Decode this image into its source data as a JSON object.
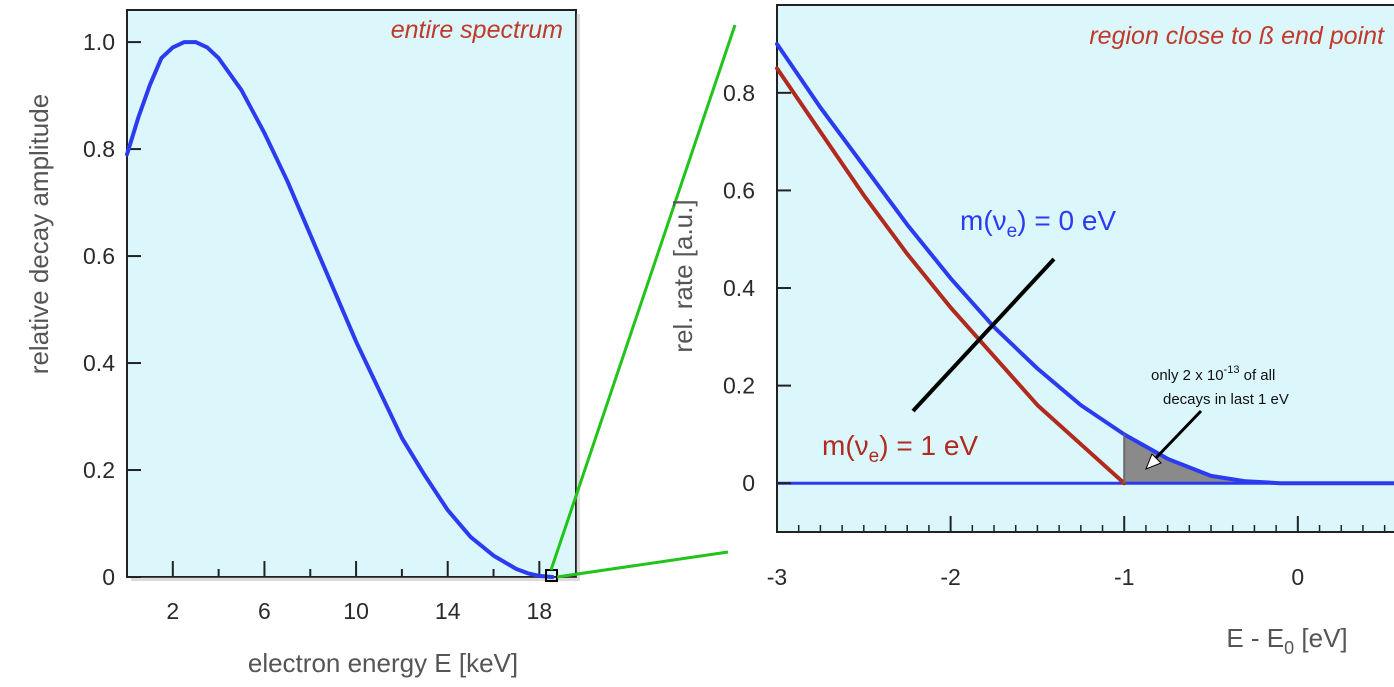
{
  "chart_data": [
    {
      "type": "line",
      "annotation": "entire spectrum",
      "xlabel": "electron energy E [keV]",
      "ylabel": "relative decay amplitude",
      "xlim": [
        0,
        19.6
      ],
      "ylim": [
        0,
        1.06
      ],
      "xticks": [
        2,
        6,
        10,
        14,
        18
      ],
      "yticks": [
        0,
        0.2,
        0.4,
        0.6,
        0.8,
        1.0
      ],
      "ytick_labels": [
        "0",
        "0.2",
        "0.4",
        "0.6",
        "0.8",
        "1.0"
      ],
      "series": [
        {
          "color": "#2b3bf0",
          "x": [
            0,
            0.5,
            1,
            1.5,
            2,
            2.5,
            3,
            3.5,
            4,
            5,
            6,
            7,
            8,
            9,
            10,
            11,
            12,
            13,
            14,
            15,
            16,
            17,
            17.5,
            18,
            18.57
          ],
          "y": [
            0.79,
            0.86,
            0.92,
            0.97,
            0.99,
            1.0,
            1.0,
            0.99,
            0.97,
            0.91,
            0.83,
            0.74,
            0.64,
            0.54,
            0.44,
            0.35,
            0.26,
            0.19,
            0.125,
            0.075,
            0.04,
            0.015,
            0.007,
            0.002,
            0
          ]
        }
      ],
      "zoom_box_x": 18.57
    },
    {
      "type": "line",
      "annotation": "region close to ß end point",
      "xlabel": "E - E0 [eV]",
      "ylabel": "rel. rate [a.u.]",
      "xlim": [
        -3,
        0.6
      ],
      "ylim": [
        -0.1,
        0.98
      ],
      "xticks": [
        -3,
        -2,
        -1,
        0
      ],
      "yticks": [
        0,
        0.2,
        0.4,
        0.6,
        0.8
      ],
      "ytick_labels": [
        "0",
        "0.2",
        "0.4",
        "0.6",
        "0.8"
      ],
      "series": [
        {
          "name": "m(νe) = 0 eV",
          "color": "#2b3bf0",
          "x": [
            -3,
            -2.75,
            -2.5,
            -2.25,
            -2,
            -1.75,
            -1.5,
            -1.25,
            -1,
            -0.75,
            -0.5,
            -0.3,
            -0.1,
            0,
            0.6
          ],
          "y": [
            0.9,
            0.77,
            0.65,
            0.53,
            0.42,
            0.32,
            0.235,
            0.16,
            0.1,
            0.05,
            0.015,
            0.004,
            0,
            0,
            0
          ]
        },
        {
          "name": "m(νe) = 1 eV",
          "color": "#b02a1e",
          "x": [
            -3,
            -2.75,
            -2.5,
            -2.25,
            -2,
            -1.75,
            -1.5,
            -1.25,
            -1
          ],
          "y": [
            0.85,
            0.72,
            0.59,
            0.47,
            0.36,
            0.26,
            0.16,
            0.08,
            0
          ]
        }
      ],
      "shaded_region": {
        "from": -1,
        "to": 0,
        "color": "#8a8a8a"
      },
      "callout": [
        "only 2 x 10",
        "-13",
        " of all",
        "decays in last 1 eV"
      ]
    }
  ]
}
